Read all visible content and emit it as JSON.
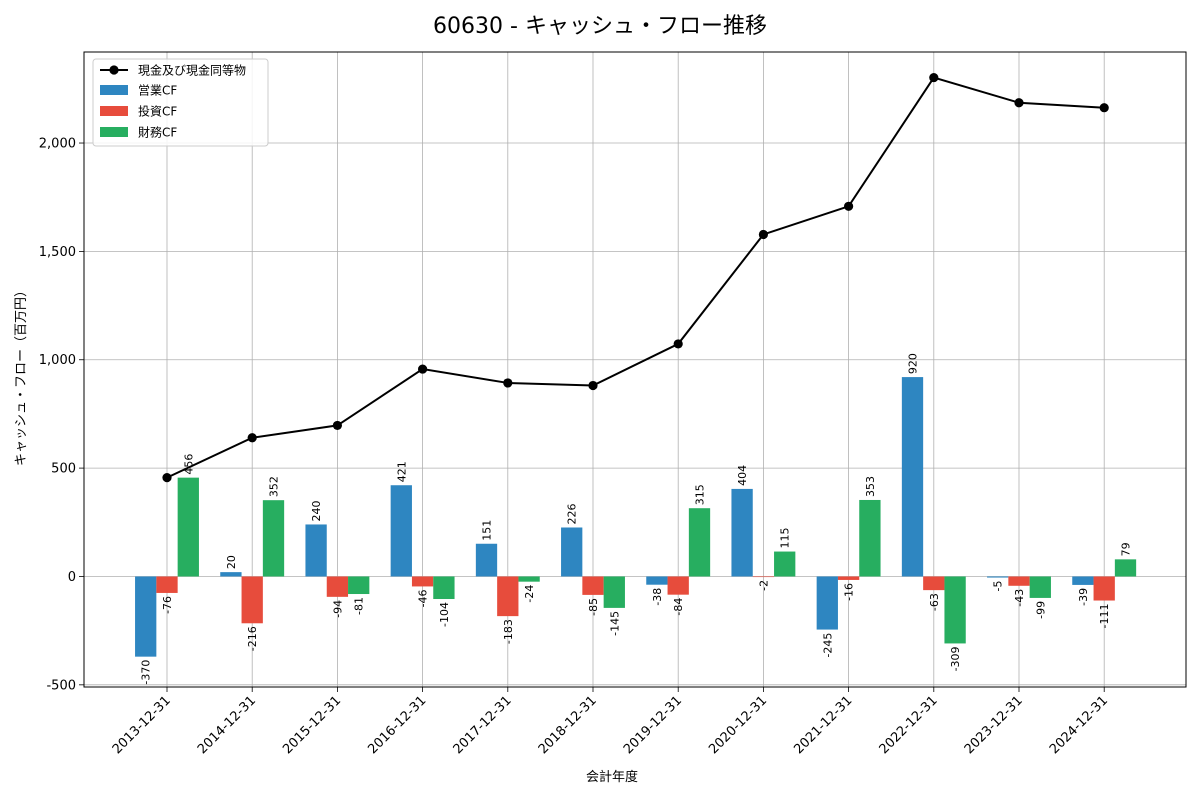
{
  "chart_data": {
    "type": "bar",
    "title": "60630 - キャッシュ・フロー推移",
    "xlabel": "会計年度",
    "ylabel": "キャッシュ・フロー（百万円）",
    "ylim": [
      -510,
      2420
    ],
    "yticks": [
      -500,
      0,
      500,
      1000,
      1500,
      2000
    ],
    "ytick_labels": [
      "-500",
      "0",
      "500",
      "1,000",
      "1,500",
      "2,000"
    ],
    "grid": true,
    "legend_position": "top-left",
    "categories": [
      "2013-12-31",
      "2014-12-31",
      "2015-12-31",
      "2016-12-31",
      "2017-12-31",
      "2018-12-31",
      "2019-12-31",
      "2020-12-31",
      "2021-12-31",
      "2022-12-31",
      "2023-12-31",
      "2024-12-31"
    ],
    "line_series": {
      "name": "現金及び現金同等物",
      "color": "#000000",
      "values": [
        456,
        640,
        697,
        957,
        893,
        881,
        1073,
        1578,
        1708,
        2302,
        2186,
        2163
      ]
    },
    "series": [
      {
        "name": "営業CF",
        "color": "#2e86c1",
        "values": [
          -370,
          20,
          240,
          421,
          151,
          226,
          -38,
          404,
          -245,
          920,
          -5,
          -39
        ],
        "labels": [
          "-370",
          "20",
          "240",
          "421",
          "151",
          "226",
          "-38",
          "404",
          "-245",
          "920",
          "-5",
          "-39"
        ]
      },
      {
        "name": "投資CF",
        "color": "#e74c3c",
        "values": [
          -76,
          -216,
          -94,
          -46,
          -183,
          -85,
          -84,
          -2,
          -16,
          -63,
          -43,
          -111
        ],
        "labels": [
          "-76",
          "-216",
          "-94",
          "-46",
          "-183",
          "-85",
          "-84",
          "-2",
          "-16",
          "-63",
          "-43",
          "-111"
        ]
      },
      {
        "name": "財務CF",
        "color": "#27ae60",
        "values": [
          456,
          352,
          -81,
          -104,
          -24,
          -145,
          315,
          115,
          353,
          -309,
          -99,
          79
        ],
        "labels": [
          "456",
          "352",
          "-81",
          "-104",
          "-24",
          "-145",
          "315",
          "115",
          "353",
          "-309",
          "-99",
          "79"
        ]
      }
    ]
  }
}
